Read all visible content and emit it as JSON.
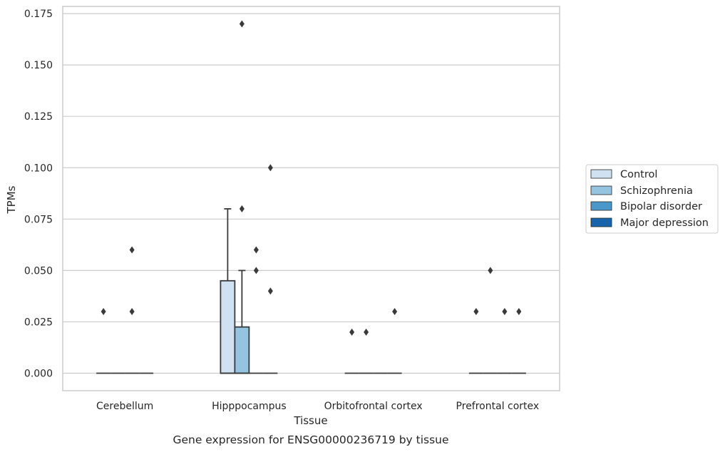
{
  "chart_data": {
    "type": "box",
    "caption": "Gene expression for ENSG00000236719 by tissue",
    "xlabel": "Tissue",
    "ylabel": "TPMs",
    "ylim": [
      -0.0085,
      0.1785
    ],
    "yticks": [
      "0.000",
      "0.025",
      "0.050",
      "0.075",
      "0.100",
      "0.125",
      "0.150",
      "0.175"
    ],
    "ytick_values": [
      0.0,
      0.025,
      0.05,
      0.075,
      0.1,
      0.125,
      0.15,
      0.175
    ],
    "categories": [
      "Cerebellum",
      "Hipppocampus",
      "Orbitofrontal cortex",
      "Prefrontal cortex"
    ],
    "grid": true,
    "legend_position": "right",
    "series": [
      {
        "name": "Control",
        "color": "#d0e1f2"
      },
      {
        "name": "Schizophrenia",
        "color": "#94c4df"
      },
      {
        "name": "Bipolar disorder",
        "color": "#4a98c9"
      },
      {
        "name": "Major depression",
        "color": "#1764ab"
      }
    ],
    "boxes": [
      {
        "category": "Cerebellum",
        "series": "Control",
        "q1": 0,
        "median": 0,
        "q3": 0,
        "whisker_low": 0,
        "whisker_high": 0,
        "outliers": [
          0.03
        ]
      },
      {
        "category": "Cerebellum",
        "series": "Schizophrenia",
        "q1": 0,
        "median": 0,
        "q3": 0,
        "whisker_low": 0,
        "whisker_high": 0,
        "outliers": []
      },
      {
        "category": "Cerebellum",
        "series": "Bipolar disorder",
        "q1": 0,
        "median": 0,
        "q3": 0,
        "whisker_low": 0,
        "whisker_high": 0,
        "outliers": [
          0.06,
          0.03
        ]
      },
      {
        "category": "Cerebellum",
        "series": "Major depression",
        "q1": 0,
        "median": 0,
        "q3": 0,
        "whisker_low": 0,
        "whisker_high": 0,
        "outliers": []
      },
      {
        "category": "Hipppocampus",
        "series": "Control",
        "q1": 0,
        "median": 0,
        "q3": 0.045,
        "whisker_low": 0,
        "whisker_high": 0.08,
        "outliers": []
      },
      {
        "category": "Hipppocampus",
        "series": "Schizophrenia",
        "q1": 0,
        "median": 0,
        "q3": 0.0225,
        "whisker_low": 0,
        "whisker_high": 0.05,
        "outliers": [
          0.17,
          0.08
        ]
      },
      {
        "category": "Hipppocampus",
        "series": "Bipolar disorder",
        "q1": 0,
        "median": 0,
        "q3": 0,
        "whisker_low": 0,
        "whisker_high": 0,
        "outliers": [
          0.06,
          0.05
        ]
      },
      {
        "category": "Hipppocampus",
        "series": "Major depression",
        "q1": 0,
        "median": 0,
        "q3": 0,
        "whisker_low": 0,
        "whisker_high": 0,
        "outliers": [
          0.1,
          0.04
        ]
      },
      {
        "category": "Orbitofrontal cortex",
        "series": "Control",
        "q1": 0,
        "median": 0,
        "q3": 0,
        "whisker_low": 0,
        "whisker_high": 0,
        "outliers": [
          0.02
        ]
      },
      {
        "category": "Orbitofrontal cortex",
        "series": "Schizophrenia",
        "q1": 0,
        "median": 0,
        "q3": 0,
        "whisker_low": 0,
        "whisker_high": 0,
        "outliers": [
          0.02
        ]
      },
      {
        "category": "Orbitofrontal cortex",
        "series": "Bipolar disorder",
        "q1": 0,
        "median": 0,
        "q3": 0,
        "whisker_low": 0,
        "whisker_high": 0,
        "outliers": []
      },
      {
        "category": "Orbitofrontal cortex",
        "series": "Major depression",
        "q1": 0,
        "median": 0,
        "q3": 0,
        "whisker_low": 0,
        "whisker_high": 0,
        "outliers": [
          0.03
        ]
      },
      {
        "category": "Prefrontal cortex",
        "series": "Control",
        "q1": 0,
        "median": 0,
        "q3": 0,
        "whisker_low": 0,
        "whisker_high": 0,
        "outliers": [
          0.03
        ]
      },
      {
        "category": "Prefrontal cortex",
        "series": "Schizophrenia",
        "q1": 0,
        "median": 0,
        "q3": 0,
        "whisker_low": 0,
        "whisker_high": 0,
        "outliers": [
          0.05
        ]
      },
      {
        "category": "Prefrontal cortex",
        "series": "Bipolar disorder",
        "q1": 0,
        "median": 0,
        "q3": 0,
        "whisker_low": 0,
        "whisker_high": 0,
        "outliers": [
          0.03
        ]
      },
      {
        "category": "Prefrontal cortex",
        "series": "Major depression",
        "q1": 0,
        "median": 0,
        "q3": 0,
        "whisker_low": 0,
        "whisker_high": 0,
        "outliers": [
          0.03
        ]
      }
    ]
  }
}
